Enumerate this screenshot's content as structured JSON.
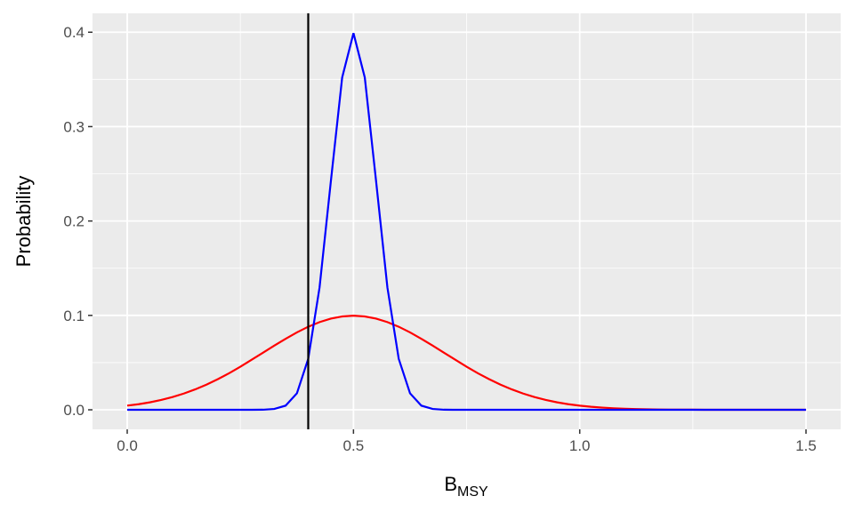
{
  "chart_data": {
    "type": "line",
    "y_label": "Probability",
    "x_label": "B",
    "x_label_subscript": "MSY",
    "x": [
      0,
      0.025,
      0.05,
      0.075,
      0.1,
      0.125,
      0.15,
      0.175,
      0.2,
      0.225,
      0.25,
      0.275,
      0.3,
      0.325,
      0.35,
      0.375,
      0.4,
      0.425,
      0.45,
      0.475,
      0.5,
      0.525,
      0.55,
      0.575,
      0.6,
      0.625,
      0.65,
      0.675,
      0.7,
      0.725,
      0.75,
      0.775,
      0.8,
      0.825,
      0.85,
      0.875,
      0.9,
      0.925,
      0.95,
      0.975,
      1,
      1.025,
      1.05,
      1.075,
      1.1,
      1.125,
      1.15,
      1.175,
      1.2,
      1.225,
      1.25,
      1.275,
      1.3,
      1.325,
      1.35,
      1.375,
      1.4,
      1.425,
      1.45,
      1.475,
      1.5
    ],
    "series": [
      {
        "color": "#ff0000",
        "values": [
          0.0044,
          0.0059,
          0.0079,
          0.0104,
          0.0135,
          0.0172,
          0.0216,
          0.0266,
          0.0324,
          0.0387,
          0.0456,
          0.053,
          0.0605,
          0.068,
          0.0752,
          0.082,
          0.088,
          0.0929,
          0.0966,
          0.0989,
          0.0997,
          0.0989,
          0.0966,
          0.0929,
          0.088,
          0.082,
          0.0752,
          0.068,
          0.0605,
          0.053,
          0.0456,
          0.0387,
          0.0324,
          0.0266,
          0.0216,
          0.0172,
          0.0135,
          0.0104,
          0.0079,
          0.0059,
          0.0044,
          0.0032,
          0.0023,
          0.0016,
          0.0011,
          0.0008,
          0.0005,
          0.0003,
          0.0002,
          0.0001,
          0.0001,
          0,
          0,
          0,
          0,
          0,
          0,
          0,
          0,
          0,
          0
        ]
      },
      {
        "color": "#0000ff",
        "values": [
          0,
          0,
          0,
          0,
          0,
          0,
          0,
          0,
          0,
          0,
          0,
          0,
          0.0001,
          0.0009,
          0.0044,
          0.0175,
          0.054,
          0.1295,
          0.242,
          0.352,
          0.399,
          0.352,
          0.242,
          0.1295,
          0.054,
          0.0175,
          0.0044,
          0.0009,
          0.0001,
          0,
          0,
          0,
          0,
          0,
          0,
          0,
          0,
          0,
          0,
          0,
          0,
          0,
          0,
          0,
          0,
          0,
          0,
          0,
          0,
          0,
          0,
          0,
          0,
          0,
          0,
          0,
          0,
          0,
          0,
          0,
          0
        ]
      }
    ],
    "vline": 0.4,
    "vline_color": "#000000",
    "xlim": [
      -0.0767,
      1.5766
    ],
    "xticks": [
      {
        "value": 0,
        "label": "0.0"
      },
      0.5,
      {
        "value": 1,
        "label": "1.0"
      },
      1.5
    ],
    "ylim": [
      -0.0207,
      0.42
    ],
    "yticks": [
      {
        "value": 0,
        "label": "0.0"
      },
      0.1,
      0.2,
      0.3,
      0.4
    ],
    "grid": true,
    "minor_grid": true
  }
}
